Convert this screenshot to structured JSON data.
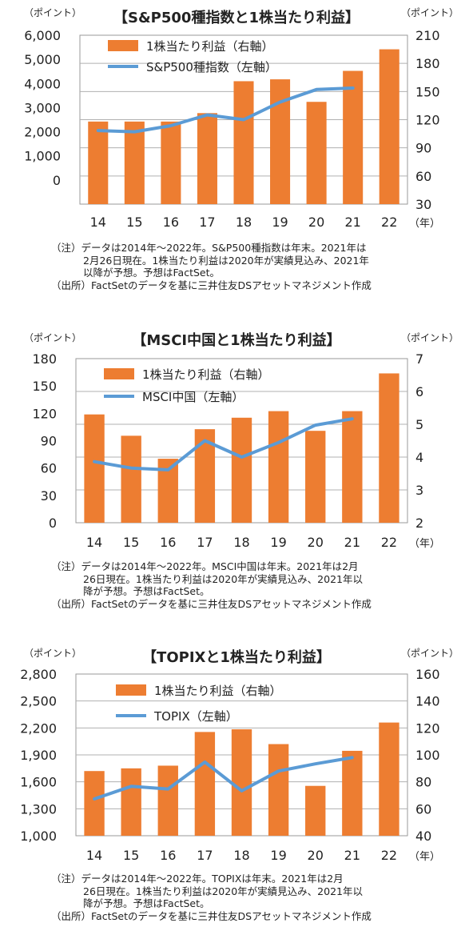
{
  "chart_data": [
    {
      "type": "bar+line",
      "title": "【S&P500種指数と1株当たり利益】",
      "left_unit": "（ポイント）",
      "right_unit": "（ポイント）",
      "x_unit": "（年）",
      "categories": [
        "14",
        "15",
        "16",
        "17",
        "18",
        "19",
        "20",
        "21",
        "22"
      ],
      "left_axis": {
        "min": -1000,
        "max": 6000,
        "ticks": [
          0,
          1000,
          2000,
          3000,
          4000,
          5000,
          6000
        ],
        "tick_labels": [
          "0",
          "1,000",
          "2,000",
          "3,000",
          "4,000",
          "5,000",
          "6,000"
        ]
      },
      "right_axis": {
        "min": 30,
        "max": 210,
        "ticks": [
          30,
          60,
          90,
          120,
          150,
          180,
          210
        ],
        "tick_labels": [
          "30",
          "60",
          "90",
          "120",
          "150",
          "180",
          "210"
        ]
      },
      "series": [
        {
          "name": "1株当たり利益（右軸）",
          "type": "bar",
          "axis": "right",
          "values": [
            118,
            118,
            118,
            127,
            161,
            163,
            139,
            172,
            195
          ]
        },
        {
          "name": "S&P500種指数（左軸）",
          "type": "line",
          "axis": "left",
          "values": [
            2050,
            2000,
            2250,
            2700,
            2500,
            3230,
            3750,
            3810,
            null
          ]
        }
      ],
      "notes": [
        "（注）データは2014年～2022年。S&P500種指数は年末。2021年は",
        "2月26日現在。1株当たり利益は2020年が実績見込み、2021年",
        "以降が予想。予想はFactSet。",
        "（出所）FactSetのデータを基に三井住友DSアセットマネジメント作成"
      ]
    },
    {
      "type": "bar+line",
      "title": "【MSCI中国と1株当たり利益】",
      "left_unit": "（ポイント）",
      "right_unit": "（ポイント）",
      "x_unit": "（年）",
      "categories": [
        "14",
        "15",
        "16",
        "17",
        "18",
        "19",
        "20",
        "21",
        "22"
      ],
      "left_axis": {
        "min": 0,
        "max": 180,
        "ticks": [
          0,
          30,
          60,
          90,
          120,
          150,
          180
        ],
        "tick_labels": [
          "0",
          "30",
          "60",
          "90",
          "120",
          "150",
          "180"
        ]
      },
      "right_axis": {
        "min": 2,
        "max": 7,
        "ticks": [
          2,
          3,
          4,
          5,
          6,
          7
        ],
        "tick_labels": [
          "2",
          "3",
          "4",
          "5",
          "6",
          "7"
        ]
      },
      "series": [
        {
          "name": "1株当たり利益（右軸）",
          "type": "bar",
          "axis": "right",
          "values": [
            5.3,
            4.65,
            3.95,
            4.85,
            5.2,
            5.4,
            4.8,
            5.4,
            6.55
          ]
        },
        {
          "name": "MSCI中国（左軸）",
          "type": "line",
          "axis": "left",
          "values": [
            67,
            60,
            58,
            90,
            72,
            88,
            107,
            114,
            null
          ]
        }
      ],
      "notes": [
        "（注）データは2014年～2022年。MSCI中国は年末。2021年は2月",
        "26日現在。1株当たり利益は2020年が実績見込み、2021年以",
        "降が予想。予想はFactSet。",
        "（出所）FactSetのデータを基に三井住友DSアセットマネジメント作成"
      ]
    },
    {
      "type": "bar+line",
      "title": "【TOPIXと1株当たり利益】",
      "left_unit": "（ポイント）",
      "right_unit": "（ポイント）",
      "x_unit": "（年）",
      "categories": [
        "14",
        "15",
        "16",
        "17",
        "18",
        "19",
        "20",
        "21",
        "22"
      ],
      "left_axis": {
        "min": 1000,
        "max": 2800,
        "ticks": [
          1000,
          1300,
          1600,
          1900,
          2200,
          2500,
          2800
        ],
        "tick_labels": [
          "1,000",
          "1,300",
          "1,600",
          "1,900",
          "2,200",
          "2,500",
          "2,800"
        ]
      },
      "right_axis": {
        "min": 40,
        "max": 160,
        "ticks": [
          40,
          60,
          80,
          100,
          120,
          140,
          160
        ],
        "tick_labels": [
          "40",
          "60",
          "80",
          "100",
          "120",
          "140",
          "160"
        ]
      },
      "series": [
        {
          "name": "1株当たり利益（右軸）",
          "type": "bar",
          "axis": "right",
          "values": [
            88,
            90,
            92,
            117,
            119,
            108,
            77,
            103,
            124
          ]
        },
        {
          "name": "TOPIX（左軸）",
          "type": "line",
          "axis": "left",
          "values": [
            1410,
            1550,
            1520,
            1820,
            1500,
            1720,
            1800,
            1870,
            null
          ]
        }
      ],
      "notes": [
        "（注）データは2014年～2022年。TOPIXは年末。2021年は2月",
        "26日現在。1株当たり利益は2020年が実績見込み、2021年以",
        "降が予想。予想はFactSet。",
        "（出所）FactSetのデータを基に三井住友DSアセットマネジメント作成"
      ]
    }
  ],
  "colors": {
    "bar": "#ED7D31",
    "line": "#5B9BD5",
    "grid": "#999999",
    "axis": "#333333",
    "text": "#222222"
  }
}
